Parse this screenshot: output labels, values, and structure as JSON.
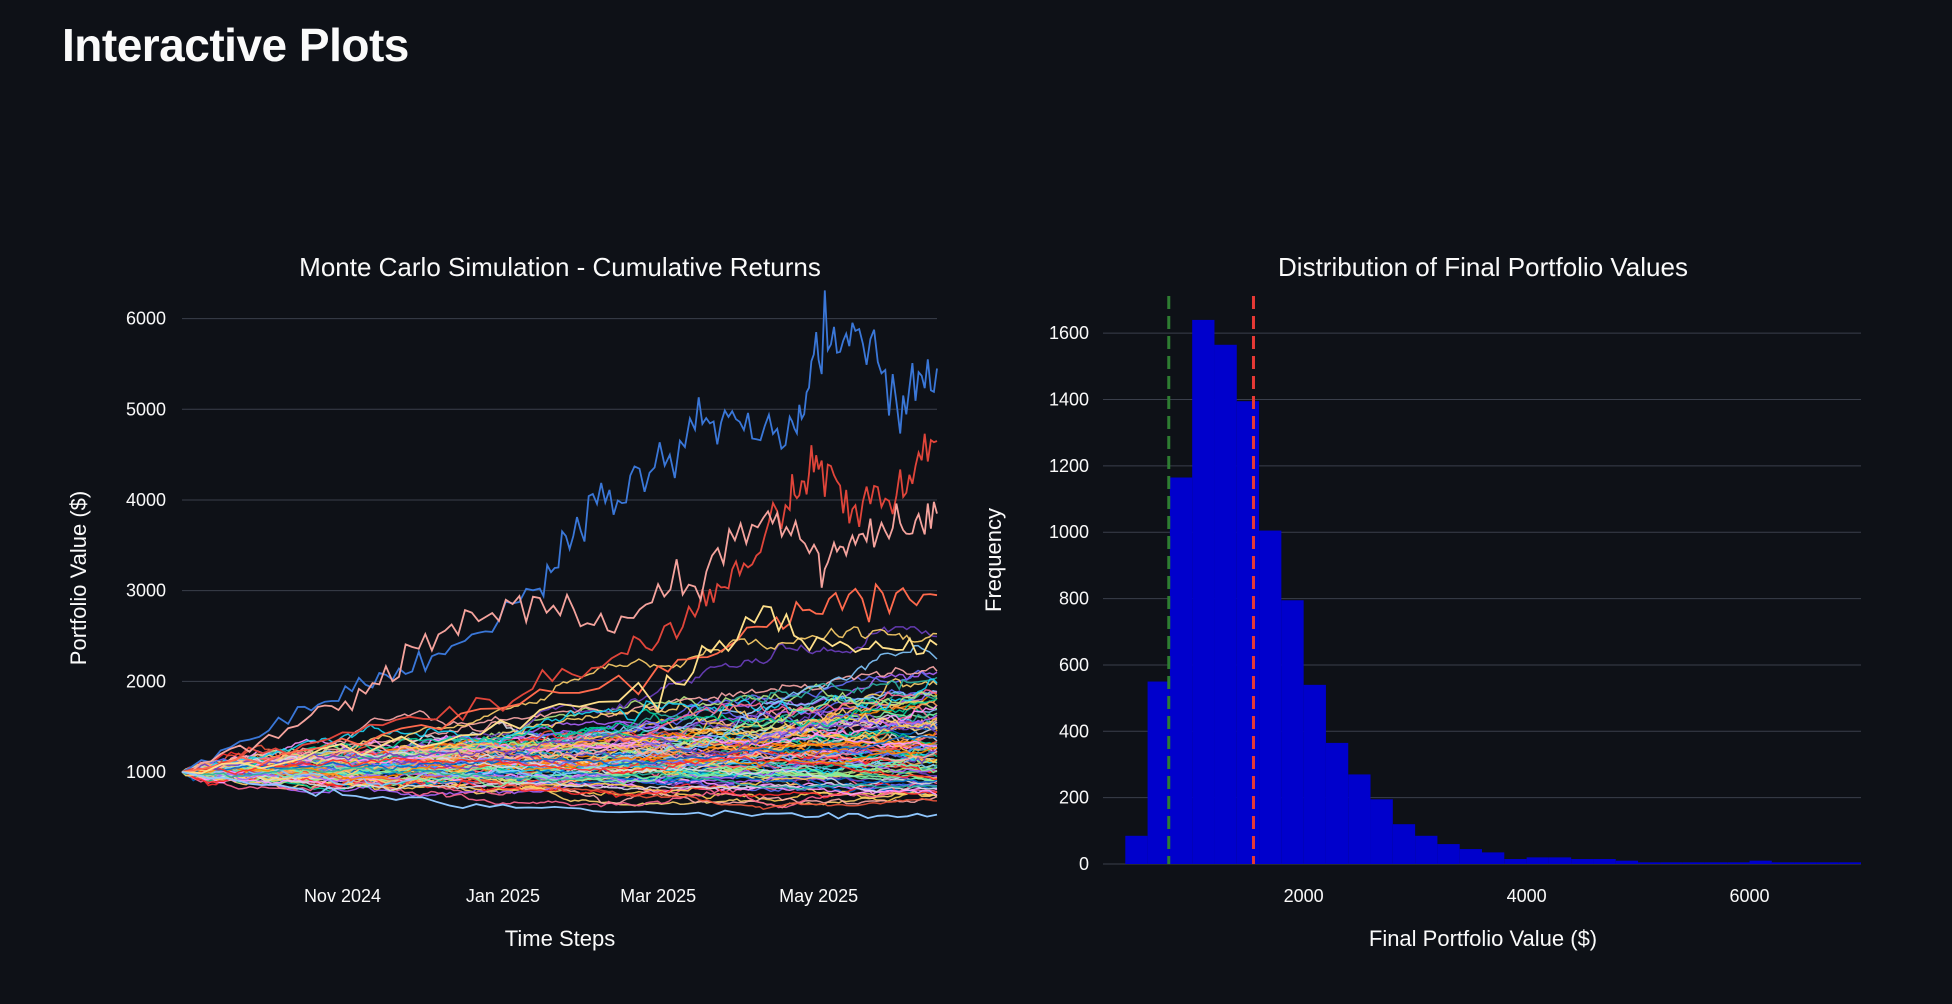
{
  "page": {
    "title": "Interactive Plots"
  },
  "colors": {
    "background": "#0e1117",
    "grid": "#3a3f4b",
    "text": "#fafafa",
    "histogram_bar": "#0000cc",
    "marker_green": "#2e7d32",
    "marker_red": "#e53935"
  },
  "chart_data": [
    {
      "type": "line",
      "title": "Monte Carlo Simulation - Cumulative Returns",
      "xlabel": "Time Steps",
      "ylabel": "Portfolio Value ($)",
      "x_start": "2024-09-01",
      "x_end": "2025-06-15",
      "x_ticks": [
        "Nov 2024",
        "Jan 2025",
        "Mar 2025",
        "May 2025"
      ],
      "x_tick_dates": [
        "2024-11-01",
        "2025-01-01",
        "2025-03-01",
        "2025-05-01"
      ],
      "y_ticks": [
        1000,
        2000,
        3000,
        4000,
        5000,
        6000
      ],
      "ylim": [
        250,
        6150
      ],
      "grid": true,
      "legend": "none",
      "num_simulations": 100,
      "start_value": 1000,
      "series_palette": [
        "#636efa",
        "#ef553b",
        "#00cc96",
        "#ab63fa",
        "#ffa15a",
        "#19d3f3",
        "#ff6692",
        "#b6e880",
        "#ff97ff",
        "#fecb52",
        "#83c9ff",
        "#ffabab",
        "#7defa1",
        "#ff8700",
        "#d5dae5",
        "#0068c9",
        "#ff2b2b",
        "#ffd16a",
        "#6d3fc0",
        "#29b09d"
      ],
      "highlighted_series": [
        {
          "color": "#3a77d8",
          "x": [
            "2024-09-01",
            "2024-10-15",
            "2024-11-15",
            "2024-12-15",
            "2025-01-15",
            "2025-02-01",
            "2025-02-20",
            "2025-03-15",
            "2025-04-01",
            "2025-04-20",
            "2025-05-01",
            "2025-05-15",
            "2025-06-01",
            "2025-06-15"
          ],
          "values": [
            1000,
            1650,
            2000,
            2400,
            3000,
            3900,
            4100,
            4800,
            4900,
            4700,
            5700,
            6000,
            5000,
            5450
          ]
        },
        {
          "color": "#e0453a",
          "x": [
            "2024-09-01",
            "2024-11-01",
            "2025-01-01",
            "2025-02-15",
            "2025-03-15",
            "2025-04-01",
            "2025-04-20",
            "2025-05-01",
            "2025-05-15",
            "2025-06-01",
            "2025-06-15"
          ],
          "values": [
            1000,
            1400,
            1800,
            2300,
            2800,
            3300,
            4000,
            4400,
            3900,
            4100,
            4650
          ]
        },
        {
          "color": "#f5a39d",
          "x": [
            "2024-09-01",
            "2024-10-15",
            "2024-11-15",
            "2024-12-15",
            "2025-01-15",
            "2025-02-15",
            "2025-03-15",
            "2025-04-10",
            "2025-05-01",
            "2025-05-15",
            "2025-06-01",
            "2025-06-15"
          ],
          "values": [
            1000,
            1500,
            2000,
            2700,
            2850,
            2600,
            3150,
            3950,
            3300,
            3600,
            3700,
            3850
          ]
        },
        {
          "color": "#ff6a4d",
          "x": [
            "2024-09-01",
            "2024-12-01",
            "2025-03-01",
            "2025-04-15",
            "2025-05-15",
            "2025-06-15"
          ],
          "values": [
            1000,
            1500,
            2100,
            2600,
            2900,
            2950
          ]
        },
        {
          "color": "#ffe08a",
          "x": [
            "2024-09-01",
            "2024-12-01",
            "2025-03-01",
            "2025-04-10",
            "2025-05-15",
            "2025-06-15"
          ],
          "values": [
            1000,
            1300,
            1900,
            2700,
            2300,
            2400
          ]
        },
        {
          "color": "#8fc7ff",
          "x": [
            "2024-09-01",
            "2024-11-01",
            "2025-01-01",
            "2025-03-01",
            "2025-05-01",
            "2025-06-15"
          ],
          "values": [
            1000,
            750,
            620,
            560,
            520,
            530
          ]
        }
      ]
    },
    {
      "type": "bar",
      "title": "Distribution of Final Portfolio Values",
      "xlabel": "Final Portfolio Value ($)",
      "ylabel": "Frequency",
      "x_ticks": [
        2000,
        4000,
        6000
      ],
      "y_ticks": [
        0,
        200,
        400,
        600,
        800,
        1000,
        1200,
        1400,
        1600
      ],
      "xlim": [
        200,
        7000
      ],
      "ylim": [
        0,
        1700
      ],
      "grid": true,
      "legend": "none",
      "bin_width": 200,
      "bin_starts": [
        400,
        600,
        800,
        1000,
        1200,
        1400,
        1600,
        1800,
        2000,
        2200,
        2400,
        2600,
        2800,
        3000,
        3200,
        3400,
        3600,
        3800,
        4000,
        4200,
        4400,
        4600,
        4800,
        5000,
        5200,
        5400,
        5600,
        5800,
        6000,
        6200,
        6400,
        6600,
        6800
      ],
      "values": [
        85,
        550,
        1165,
        1640,
        1565,
        1395,
        1005,
        795,
        540,
        365,
        270,
        195,
        120,
        85,
        60,
        45,
        35,
        15,
        20,
        20,
        15,
        15,
        10,
        5,
        5,
        5,
        5,
        5,
        10,
        5,
        5,
        5,
        5
      ],
      "vertical_markers": [
        {
          "value": 790,
          "color": "#2e7d32",
          "style": "dashed"
        },
        {
          "value": 1550,
          "color": "#e53935",
          "style": "dashed"
        }
      ]
    }
  ]
}
